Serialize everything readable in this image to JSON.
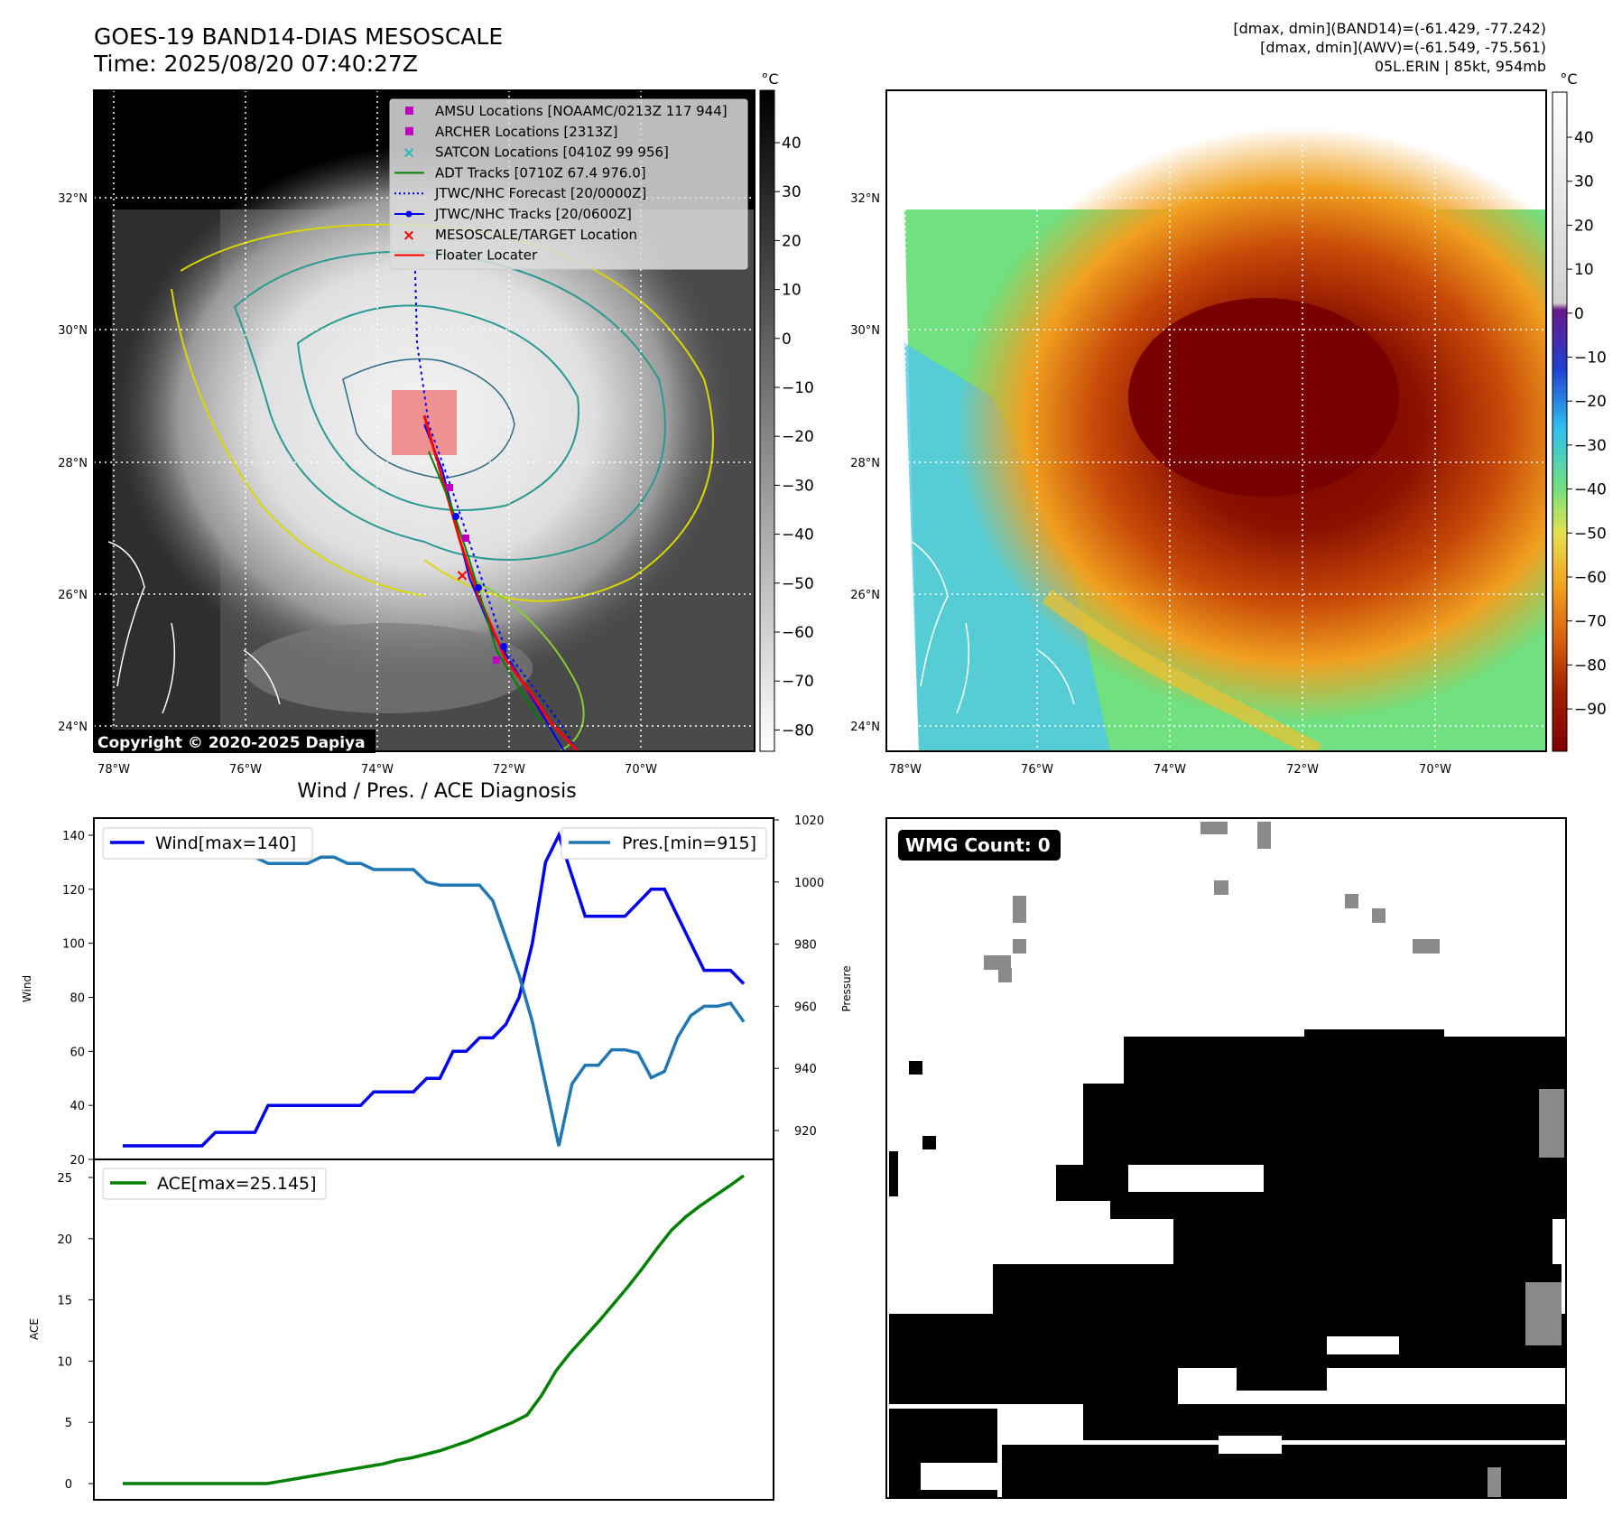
{
  "header": {
    "title_line1": "GOES-19 BAND14-DIAS MESOSCALE",
    "title_line2": "Time: 2025/08/20 07:40:27Z",
    "info_line1": "[dmax, dmin](BAND14)=(-61.429, -77.242)",
    "info_line2": "[dmax, dmin](AWV)=(-61.549, -75.561)",
    "info_line3": "05L.ERIN | 85kt, 954mb"
  },
  "maps": {
    "lon_ticks": [
      "78°W",
      "76°W",
      "74°W",
      "72°W",
      "70°W"
    ],
    "lat_ticks": [
      "32°N",
      "30°N",
      "28°N",
      "26°N",
      "24°N"
    ],
    "copyright": "Copyright © 2020-2025 Dapiya",
    "left_colorbar": {
      "unit": "°C",
      "ticks": [
        "40",
        "30",
        "20",
        "10",
        "0",
        "−10",
        "−20",
        "−30",
        "−40",
        "−50",
        "−60",
        "−70",
        "−80"
      ]
    },
    "right_colorbar": {
      "unit": "°C",
      "ticks": [
        "40",
        "30",
        "20",
        "10",
        "0",
        "−10",
        "−20",
        "−30",
        "−40",
        "−50",
        "−60",
        "−70",
        "−80",
        "−90"
      ]
    },
    "legend": [
      {
        "label": "AMSU Locations [NOAAMC/0213Z 117 944]",
        "marker": "square",
        "color": "#c000c0"
      },
      {
        "label": "ARCHER Locations [2313Z]",
        "marker": "square",
        "color": "#c000c0"
      },
      {
        "label": "SATCON Locations [0410Z 99 956]",
        "marker": "x",
        "color": "#20c0c0"
      },
      {
        "label": "ADT Tracks [0710Z 67.4 976.0]",
        "marker": "line",
        "color": "#008000"
      },
      {
        "label": "JTWC/NHC Forecast [20/0000Z]",
        "marker": "dotted",
        "color": "#0000ff"
      },
      {
        "label": "JTWC/NHC Tracks [20/0600Z]",
        "marker": "line-dot",
        "color": "#0000ff"
      },
      {
        "label": "MESOSCALE/TARGET Location",
        "marker": "x",
        "color": "#ff0000"
      },
      {
        "label": "Floater Locater",
        "marker": "line",
        "color": "#ff0000"
      }
    ]
  },
  "diagnosis": {
    "title": "Wind / Pres. / ACE Diagnosis",
    "wind_label": "Wind",
    "pressure_label": "Pressure",
    "ace_label": "ACE",
    "wind_legend": "Wind[max=140]",
    "pres_legend": "Pres.[min=915]",
    "ace_legend": "ACE[max=25.145]",
    "wind_ticks": [
      "140",
      "120",
      "100",
      "80",
      "60",
      "40",
      "20"
    ],
    "pres_ticks": [
      "1020",
      "1000",
      "980",
      "960",
      "940",
      "920"
    ],
    "ace_ticks": [
      "25",
      "20",
      "15",
      "10",
      "5",
      "0"
    ]
  },
  "wmg": {
    "label": "WMG Count: 0"
  },
  "chart_data": [
    {
      "type": "line",
      "title": "Wind / Pres. / ACE Diagnosis",
      "ylabel": "Wind",
      "ylim": [
        20,
        145
      ],
      "series": [
        {
          "name": "Wind[max=140]",
          "color": "#0000ee",
          "values": [
            25,
            25,
            25,
            25,
            25,
            25,
            25,
            30,
            30,
            30,
            30,
            40,
            40,
            40,
            40,
            40,
            40,
            40,
            40,
            45,
            45,
            45,
            45,
            50,
            50,
            60,
            60,
            65,
            65,
            70,
            80,
            100,
            130,
            140,
            125,
            110,
            110,
            110,
            110,
            115,
            120,
            120,
            110,
            100,
            90,
            90,
            90,
            85
          ]
        }
      ]
    },
    {
      "type": "line",
      "ylabel": "Pressure",
      "ylim": [
        910,
        1020
      ],
      "series": [
        {
          "name": "Pres.[min=915]",
          "color": "#1f77b4",
          "values": [
            1015,
            1015,
            1010,
            1009,
            1008,
            1008,
            1008,
            1008,
            1008,
            1008,
            1008,
            1006,
            1006,
            1006,
            1006,
            1008,
            1008,
            1006,
            1006,
            1004,
            1004,
            1004,
            1004,
            1000,
            999,
            999,
            999,
            999,
            994,
            982,
            970,
            955,
            935,
            915,
            935,
            941,
            941,
            946,
            946,
            945,
            937,
            939,
            950,
            957,
            960,
            960,
            961,
            955
          ]
        }
      ]
    },
    {
      "type": "line",
      "ylabel": "ACE",
      "ylim": [
        -1,
        26
      ],
      "series": [
        {
          "name": "ACE[max=25.145]",
          "color": "#008000",
          "values": [
            0,
            0,
            0,
            0,
            0,
            0,
            0,
            0,
            0,
            0,
            0,
            0.2,
            0.4,
            0.6,
            0.8,
            1.0,
            1.2,
            1.4,
            1.6,
            1.9,
            2.1,
            2.4,
            2.7,
            3.1,
            3.5,
            4.0,
            4.5,
            5.0,
            5.6,
            7.2,
            9.2,
            10.7,
            12.0,
            13.3,
            14.7,
            16.1,
            17.6,
            19.2,
            20.7,
            21.8,
            22.7,
            23.5,
            24.3,
            25.145
          ]
        }
      ]
    }
  ]
}
